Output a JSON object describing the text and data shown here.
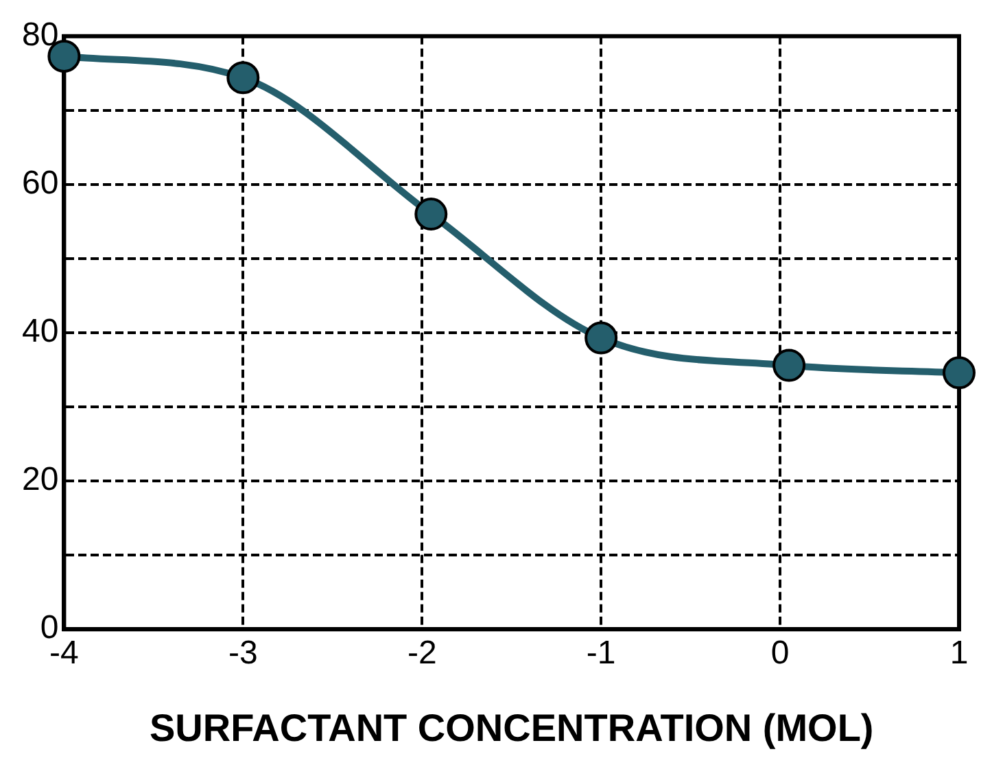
{
  "chart_data": {
    "type": "line",
    "xlabel": "SURFACTANT CONCENTRATION (MOL)",
    "x": [
      -4,
      -3,
      -1.95,
      -1,
      0.05,
      1
    ],
    "series": [
      {
        "color": "#245e6c",
        "values": [
          77.3,
          74.4,
          56,
          39.3,
          35.6,
          34.6
        ]
      }
    ],
    "xlim": [
      -4,
      1
    ],
    "xticks": [
      -4,
      -3,
      -2,
      -1,
      0,
      1
    ],
    "ylim": [
      0,
      80
    ],
    "yticks": [
      0,
      {
        "value": 10,
        "label": null
      },
      20,
      {
        "value": 30,
        "label": null
      },
      40,
      {
        "value": 50,
        "label": null
      },
      60,
      {
        "value": 70,
        "label": null
      },
      80
    ],
    "grid": true,
    "legend": false,
    "marker": "circle",
    "line_style": "solid"
  }
}
